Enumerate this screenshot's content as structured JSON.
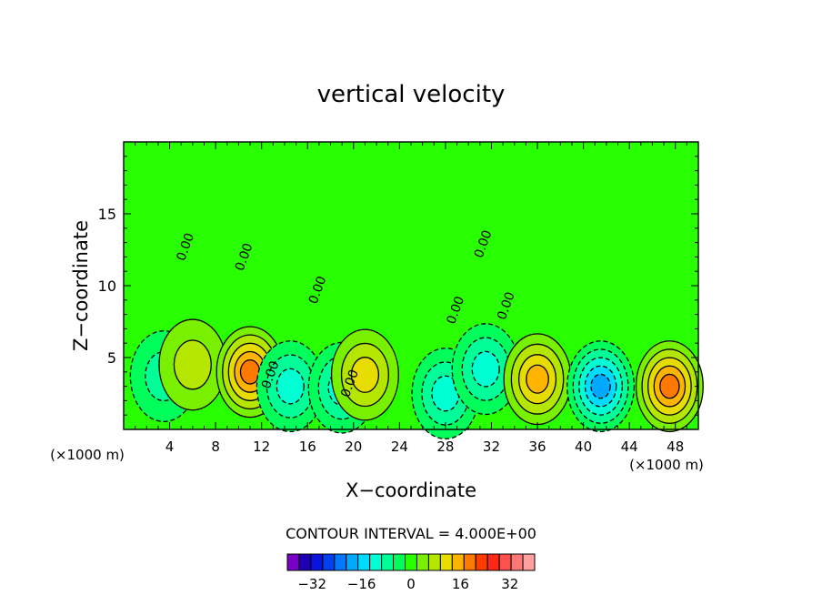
{
  "chart_data": {
    "type": "contour",
    "title": "vertical velocity",
    "xlabel": "X−coordinate",
    "ylabel": "Z−coordinate",
    "x_unit_left": "(×1000 m)",
    "x_unit_right": "(×1000 m)",
    "xlim": [
      0,
      50
    ],
    "ylim": [
      0,
      20
    ],
    "xticks": [
      4,
      8,
      12,
      16,
      20,
      24,
      28,
      32,
      36,
      40,
      44,
      48
    ],
    "yticks": [
      5,
      10,
      15
    ],
    "contour_interval_text": "CONTOUR INTERVAL = 4.000E+00",
    "contour_label": "0.00",
    "zero_contour_labels": [
      {
        "x": 5.7,
        "y": 12.6
      },
      {
        "x": 10.8,
        "y": 11.9
      },
      {
        "x": 17.2,
        "y": 9.6
      },
      {
        "x": 13.1,
        "y": 3.7
      },
      {
        "x": 20.0,
        "y": 3.1
      },
      {
        "x": 29.2,
        "y": 8.2
      },
      {
        "x": 31.6,
        "y": 12.8
      },
      {
        "x": 33.6,
        "y": 8.5
      }
    ],
    "colorbar": {
      "tick_labels": [
        "−32",
        "−16",
        "0",
        "16",
        "32"
      ],
      "tick_values": [
        -32,
        -16,
        0,
        16,
        32
      ],
      "range": [
        -40,
        40
      ],
      "colors": [
        "#7a00c8",
        "#1e00b4",
        "#0a14dc",
        "#0040f0",
        "#0078ff",
        "#00a8ff",
        "#00dcff",
        "#00ffd2",
        "#00ff96",
        "#00ff5a",
        "#28ff00",
        "#78f000",
        "#b4e600",
        "#e6dc00",
        "#ffb400",
        "#ff7800",
        "#ff3c00",
        "#ff2814",
        "#ff5050",
        "#ff7878",
        "#ffa0a0"
      ]
    },
    "field": {
      "background_value": 0,
      "features": [
        {
          "x": 3.5,
          "z": 3.7,
          "w": -5
        },
        {
          "x": 6.0,
          "z": 4.5,
          "w": 3
        },
        {
          "x": 11.0,
          "z": 4.0,
          "w": 14
        },
        {
          "x": 14.5,
          "z": 3.0,
          "w": -9
        },
        {
          "x": 19.0,
          "z": 2.9,
          "w": -8
        },
        {
          "x": 21.0,
          "z": 3.8,
          "w": 6
        },
        {
          "x": 28.0,
          "z": 2.5,
          "w": -7
        },
        {
          "x": 31.5,
          "z": 4.2,
          "w": -9
        },
        {
          "x": 36.0,
          "z": 3.5,
          "w": 13
        },
        {
          "x": 41.5,
          "z": 3.0,
          "w": -16
        },
        {
          "x": 47.5,
          "z": 3.0,
          "w": 14
        }
      ]
    }
  }
}
